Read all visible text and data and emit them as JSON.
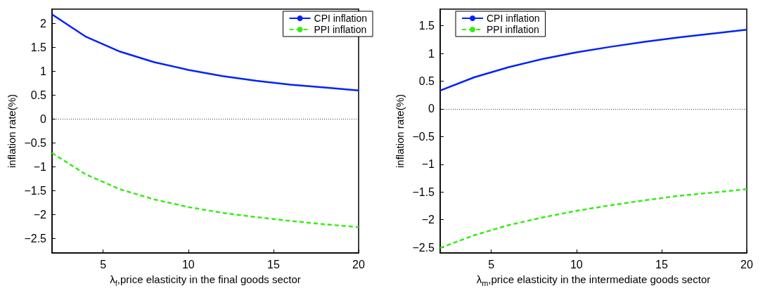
{
  "chart_data": [
    {
      "type": "line",
      "x": [
        2,
        4,
        6,
        8,
        10,
        12,
        14,
        16,
        18,
        20
      ],
      "xlabel": "λ$_{f}$,price elasticity in the final goods sector",
      "ylabel": "inflation rate(%)",
      "series": [
        {
          "name": "CPI inflation",
          "color": "#0022ff",
          "line_style": "solid",
          "values": [
            2.19,
            1.72,
            1.41,
            1.19,
            1.03,
            0.9,
            0.8,
            0.72,
            0.66,
            0.6
          ]
        },
        {
          "name": "PPI inflation",
          "color": "#33ee11",
          "line_style": "dashed",
          "values": [
            -0.71,
            -1.16,
            -1.47,
            -1.68,
            -1.84,
            -1.96,
            -2.05,
            -2.13,
            -2.2,
            -2.26
          ]
        }
      ],
      "xlim": [
        2,
        20
      ],
      "xticks": [
        5,
        10,
        15,
        20
      ],
      "ylim": [
        -2.8,
        2.3
      ],
      "yticks": [
        -2.5,
        -2,
        -1.5,
        -1,
        -0.5,
        0,
        0.5,
        1,
        1.5,
        2
      ],
      "ref_lines": [
        {
          "axis": "y",
          "value": 0,
          "color": "#000000",
          "line_style": "dotted"
        }
      ],
      "grid": false,
      "legend": "top right",
      "marker": "none"
    },
    {
      "type": "line",
      "x": [
        2,
        4,
        6,
        8,
        10,
        12,
        14,
        16,
        18,
        20
      ],
      "xlabel": "λ$_{m}$,price elasticity in the intermediate goods sector",
      "ylabel": "inflation rate(%)",
      "series": [
        {
          "name": "CPI inflation",
          "color": "#0022ff",
          "line_style": "solid",
          "values": [
            0.33,
            0.57,
            0.75,
            0.9,
            1.02,
            1.12,
            1.21,
            1.29,
            1.36,
            1.43
          ]
        },
        {
          "name": "PPI inflation",
          "color": "#33ee11",
          "line_style": "dashed",
          "values": [
            -2.51,
            -2.28,
            -2.1,
            -1.96,
            -1.84,
            -1.74,
            -1.65,
            -1.57,
            -1.51,
            -1.45
          ]
        }
      ],
      "xlim": [
        2,
        20
      ],
      "xticks": [
        5,
        10,
        15,
        20
      ],
      "ylim": [
        -2.6,
        1.8
      ],
      "yticks": [
        -2.5,
        -2,
        -1.5,
        -1,
        -0.5,
        0,
        0.5,
        1,
        1.5
      ],
      "ref_lines": [
        {
          "axis": "y",
          "value": 0,
          "color": "#000000",
          "line_style": "dotted"
        }
      ],
      "grid": false,
      "legend": "top left",
      "marker": "none"
    }
  ]
}
